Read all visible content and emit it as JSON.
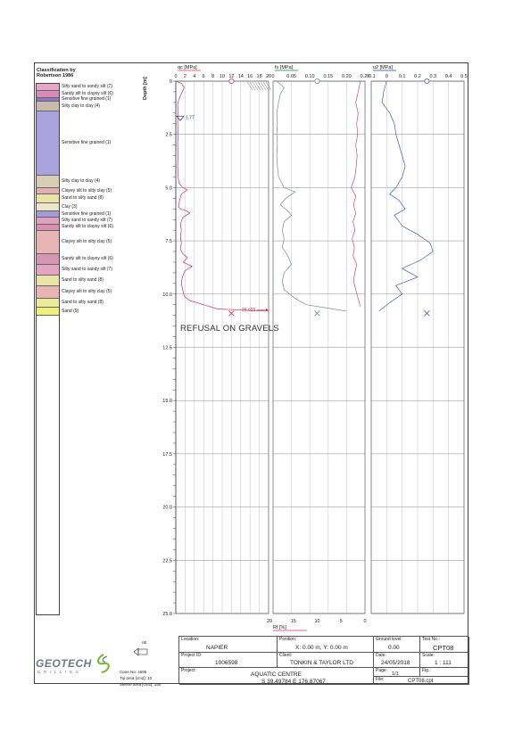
{
  "classification": {
    "title_line1": "Classification by",
    "title_line2": "Robertson 1986",
    "layers": [
      {
        "top": 0.0,
        "bottom": 0.35,
        "label": "Silty sand to sandy silt (7)",
        "color": "#e5a8c8"
      },
      {
        "top": 0.35,
        "bottom": 0.65,
        "label": "Sandy silt to clayey silt (6)",
        "color": "#d98ab5"
      },
      {
        "top": 0.65,
        "bottom": 0.85,
        "label": "Sensitive fine grained (1)",
        "color": "#8a78c4"
      },
      {
        "top": 0.85,
        "bottom": 1.3,
        "label": "Silty clay to clay (4)",
        "color": "#c8bcae"
      },
      {
        "top": 1.3,
        "bottom": 4.3,
        "label": "Sensitive fine grained (1)",
        "color": "#aaa2dc"
      },
      {
        "top": 4.3,
        "bottom": 4.9,
        "label": "Silty clay to clay (4)",
        "color": "#d8ceb8"
      },
      {
        "top": 4.9,
        "bottom": 5.2,
        "label": "Clayey silt to silty clay (5)",
        "color": "#e2b0b0"
      },
      {
        "top": 5.2,
        "bottom": 5.6,
        "label": "Sand to silty sand (8)",
        "color": "#e8e4a8"
      },
      {
        "top": 5.6,
        "bottom": 6.0,
        "label": "Clay (3)",
        "color": "#ece6c8"
      },
      {
        "top": 6.0,
        "bottom": 6.3,
        "label": "Sensitive fine grained (1)",
        "color": "#a49ad8"
      },
      {
        "top": 6.3,
        "bottom": 6.6,
        "label": "Silty sand to sandy silt (7)",
        "color": "#e0a0c0"
      },
      {
        "top": 6.6,
        "bottom": 6.9,
        "label": "Sandy silt to clayey silt (6)",
        "color": "#d890b0"
      },
      {
        "top": 6.9,
        "bottom": 8.0,
        "label": "Clayey silt to silty clay (5)",
        "color": "#e8b4b4"
      },
      {
        "top": 8.0,
        "bottom": 8.5,
        "label": "Sandy silt to clayey silt (6)",
        "color": "#d896b4"
      },
      {
        "top": 8.5,
        "bottom": 9.0,
        "label": "Silty sand to sandy silt (7)",
        "color": "#e4a4c4"
      },
      {
        "top": 9.0,
        "bottom": 9.5,
        "label": "Sand to silty sand (8)",
        "color": "#e8e4a8"
      },
      {
        "top": 9.5,
        "bottom": 10.1,
        "label": "Clayey silt to silty clay (5)",
        "color": "#e8b4b4"
      },
      {
        "top": 10.1,
        "bottom": 10.5,
        "label": "Sand to silty sand (8)",
        "color": "#ecea9c"
      },
      {
        "top": 10.5,
        "bottom": 10.9,
        "label": "Sand (9)",
        "color": "#eef07a"
      }
    ]
  },
  "chart_data": [
    {
      "type": "line",
      "name": "qc",
      "title": "qc [MPa]",
      "ylabel": "Depth [m]",
      "xlim": [
        0,
        20
      ],
      "ylim": [
        0,
        25
      ],
      "xticks": [
        "0",
        "2",
        "4",
        "6",
        "8",
        "10",
        "12",
        "14",
        "16",
        "18",
        "20"
      ],
      "yticks": [
        "0",
        "2.5",
        "5.0",
        "7.5",
        "10.0",
        "12.5",
        "15.0",
        "17.5",
        "20.0",
        "22.5",
        "25.0"
      ],
      "ytick_values": [
        0,
        2.5,
        5,
        7.5,
        10,
        12.5,
        15,
        17.5,
        20,
        22.5,
        25
      ],
      "color": "#d0305a",
      "points": [
        [
          0,
          0
        ],
        [
          1.2,
          0.1
        ],
        [
          1.8,
          0.3
        ],
        [
          1.4,
          0.5
        ],
        [
          1.0,
          0.7
        ],
        [
          0.6,
          0.9
        ],
        [
          0.4,
          1.1
        ],
        [
          0.5,
          1.5
        ],
        [
          0.4,
          2.0
        ],
        [
          0.5,
          2.5
        ],
        [
          0.4,
          3.0
        ],
        [
          0.5,
          3.5
        ],
        [
          0.4,
          4.0
        ],
        [
          0.5,
          4.5
        ],
        [
          0.7,
          4.8
        ],
        [
          1.5,
          5.0
        ],
        [
          2.5,
          5.1
        ],
        [
          1.2,
          5.3
        ],
        [
          0.8,
          5.6
        ],
        [
          0.6,
          5.9
        ],
        [
          1.0,
          6.0
        ],
        [
          2.4,
          6.1
        ],
        [
          3.0,
          6.2
        ],
        [
          1.5,
          6.4
        ],
        [
          1.0,
          6.7
        ],
        [
          1.2,
          7.0
        ],
        [
          1.0,
          7.3
        ],
        [
          1.2,
          7.6
        ],
        [
          1.0,
          7.9
        ],
        [
          1.5,
          8.1
        ],
        [
          2.5,
          8.3
        ],
        [
          1.6,
          8.5
        ],
        [
          3.5,
          8.7
        ],
        [
          2.0,
          8.9
        ],
        [
          1.4,
          9.2
        ],
        [
          1.2,
          9.5
        ],
        [
          1.5,
          9.8
        ],
        [
          1.8,
          10.1
        ],
        [
          3.0,
          10.3
        ],
        [
          6.0,
          10.5
        ],
        [
          9.0,
          10.7
        ],
        [
          20,
          10.8
        ]
      ],
      "water_level": {
        "depth": 1.77,
        "label": "1.77"
      },
      "refusal_marker": {
        "value": 12,
        "depth": 10.9
      },
      "max_annotation": "26.029",
      "top_marker_value": 12
    },
    {
      "type": "line",
      "name": "fs",
      "title": "fs [MPa]",
      "xlim": [
        0,
        0.25
      ],
      "xticks": [
        "0",
        "0.05",
        "0.10",
        "0.15",
        "0.20",
        "0.25"
      ],
      "color": "#7a8a96",
      "points": [
        [
          0.01,
          0
        ],
        [
          0.03,
          0.3
        ],
        [
          0.02,
          0.6
        ],
        [
          0.015,
          1.0
        ],
        [
          0.01,
          1.5
        ],
        [
          0.012,
          2.0
        ],
        [
          0.01,
          2.5
        ],
        [
          0.012,
          3.0
        ],
        [
          0.01,
          3.5
        ],
        [
          0.012,
          4.0
        ],
        [
          0.015,
          4.5
        ],
        [
          0.03,
          5.0
        ],
        [
          0.06,
          5.2
        ],
        [
          0.035,
          5.5
        ],
        [
          0.02,
          5.8
        ],
        [
          0.04,
          6.1
        ],
        [
          0.05,
          6.3
        ],
        [
          0.03,
          6.6
        ],
        [
          0.025,
          7.0
        ],
        [
          0.03,
          7.4
        ],
        [
          0.025,
          7.8
        ],
        [
          0.04,
          8.2
        ],
        [
          0.05,
          8.6
        ],
        [
          0.03,
          9.0
        ],
        [
          0.025,
          9.4
        ],
        [
          0.03,
          9.8
        ],
        [
          0.06,
          10.2
        ],
        [
          0.09,
          10.5
        ],
        [
          0.2,
          10.8
        ]
      ],
      "secondary_label": "Rf [%]",
      "secondary_xlim": [
        20,
        0
      ],
      "secondary_xticks": [
        "20",
        "15",
        "10",
        "5",
        "0"
      ],
      "secondary_color": "#d0305a",
      "secondary_points": [
        [
          1,
          0
        ],
        [
          1.5,
          0.5
        ],
        [
          2,
          1.0
        ],
        [
          1.5,
          1.5
        ],
        [
          1.8,
          2.0
        ],
        [
          1.6,
          2.5
        ],
        [
          2.0,
          3.0
        ],
        [
          1.7,
          3.5
        ],
        [
          1.9,
          4.0
        ],
        [
          2.2,
          4.5
        ],
        [
          3.0,
          5.0
        ],
        [
          2.0,
          5.4
        ],
        [
          2.5,
          5.8
        ],
        [
          2.0,
          6.2
        ],
        [
          2.6,
          6.6
        ],
        [
          2.2,
          7.0
        ],
        [
          2.8,
          7.4
        ],
        [
          2.3,
          7.8
        ],
        [
          2.6,
          8.2
        ],
        [
          1.8,
          8.6
        ],
        [
          2.2,
          9.0
        ],
        [
          2.5,
          9.4
        ],
        [
          2.0,
          9.8
        ],
        [
          1.5,
          10.2
        ],
        [
          1.0,
          10.6
        ]
      ],
      "refusal_marker": {
        "value": 0.12,
        "depth": 10.9
      },
      "top_marker_value": 0.12
    },
    {
      "type": "line",
      "name": "u2",
      "title": "u2 [MPa]",
      "xlim": [
        -0.1,
        0.5
      ],
      "xticks": [
        "-0.1",
        "0",
        "0.1",
        "0.2",
        "0.3",
        "0.4",
        "0.5"
      ],
      "color": "#4a5ab8",
      "points": [
        [
          0,
          0
        ],
        [
          -0.02,
          0.5
        ],
        [
          -0.03,
          1.0
        ],
        [
          0.02,
          1.5
        ],
        [
          0.05,
          2.0
        ],
        [
          0.06,
          2.5
        ],
        [
          0.08,
          3.0
        ],
        [
          0.1,
          3.5
        ],
        [
          0.12,
          4.0
        ],
        [
          0.1,
          4.5
        ],
        [
          0.06,
          5.0
        ],
        [
          0.02,
          5.3
        ],
        [
          0.08,
          5.6
        ],
        [
          0.12,
          6.0
        ],
        [
          0.05,
          6.3
        ],
        [
          0.1,
          6.8
        ],
        [
          0.2,
          7.2
        ],
        [
          0.28,
          7.6
        ],
        [
          0.3,
          8.0
        ],
        [
          0.22,
          8.4
        ],
        [
          0.1,
          8.8
        ],
        [
          0.2,
          9.2
        ],
        [
          0.06,
          9.6
        ],
        [
          0.1,
          10.0
        ],
        [
          0.02,
          10.4
        ],
        [
          -0.05,
          10.8
        ]
      ],
      "refusal_marker": {
        "value": 0.26,
        "depth": 10.9
      },
      "top_marker_value": 0.26
    }
  ],
  "annotation": "REFUSAL ON GRAVELS",
  "title_block": {
    "location_label": "Location:",
    "location_value": "NAPIER",
    "position_label": "Position:",
    "position_value": "X: 0.00 m, Y: 0.00 m",
    "ground_level_label": "Ground level:",
    "ground_level_value": "0.00",
    "test_no_label": "Test No.:",
    "test_no_value": "CPT08",
    "project_id_label": "Project ID:",
    "project_id_value": "1006598",
    "client_label": "Client:",
    "client_value": "TONKIN & TAYLOR LTD",
    "date_label": "Date:",
    "date_value": "24/05/2018",
    "scale_label": "Scale:",
    "scale_value": "1 : 111",
    "project_label": "Project:",
    "project_value": "AQUATIC CENTRE",
    "page_label": "Page:",
    "page_value": "1/1",
    "fig_label": "Fig.:",
    "coords_value": "S 39.49784 E 176.87067",
    "file_label": "File:",
    "file_value": "CPT08.cpt"
  },
  "company": {
    "name": "GEOTECH",
    "sub": "D R I L L I N G"
  },
  "cone": {
    "icon_label": "nE",
    "cone_no": "Cone No: 4696",
    "tip_area": "Tip area [cm2]: 10",
    "sleeve_area": "Sleeve area [cm2]: 150"
  }
}
